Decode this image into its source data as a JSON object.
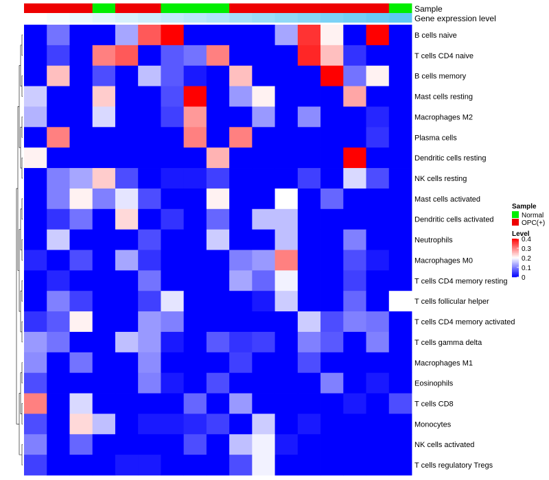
{
  "chart_data": {
    "type": "heatmap",
    "annotation_titles": [
      "Sample",
      "Gene expression level"
    ],
    "rows": [
      "B cells naive",
      "T cells CD4 naive",
      "B cells memory",
      "Mast cells resting",
      "Macrophages M2",
      "Plasma cells",
      "Dendritic cells resting",
      "NK cells resting",
      "Mast cells activated",
      "Dendritic cells activated",
      "Neutrophils",
      "Macrophages M0",
      "T cells CD4 memory resting",
      "T cells follicular helper",
      "T cells CD4 memory activated",
      "T cells gamma delta",
      "Macrophages M1",
      "Eosinophils",
      "T cells CD8",
      "Monocytes",
      "NK cells activated",
      "T cells regulatory  Tregs"
    ],
    "sample": [
      "OPC(+)",
      "OPC(+)",
      "OPC(+)",
      "Normal",
      "OPC(+)",
      "OPC(+)",
      "Normal",
      "Normal",
      "Normal",
      "OPC(+)",
      "OPC(+)",
      "OPC(+)",
      "OPC(+)",
      "OPC(+)",
      "OPC(+)",
      "OPC(+)",
      "Normal"
    ],
    "expression_level": [
      0.0,
      0.02,
      0.04,
      0.06,
      0.08,
      0.1,
      0.12,
      0.14,
      0.16,
      0.18,
      0.2,
      0.22,
      0.24,
      0.26,
      0.28,
      0.3,
      0.32
    ],
    "values": [
      [
        0,
        0.09,
        0,
        0,
        0.13,
        0.33,
        0.4,
        0,
        0,
        0,
        0,
        0.13,
        0.36,
        0.21,
        0,
        0.4,
        0
      ],
      [
        0,
        0.05,
        0,
        0.3,
        0.33,
        0,
        0.07,
        0.09,
        0.3,
        0,
        0,
        0,
        0.37,
        0.25,
        0.04,
        0,
        0
      ],
      [
        0,
        0.25,
        0,
        0.06,
        0,
        0.15,
        0.07,
        0.02,
        0,
        0.25,
        0,
        0,
        0,
        0.4,
        0.09,
        0.21,
        0
      ],
      [
        0.16,
        0,
        0,
        0.24,
        0,
        0,
        0.06,
        0.4,
        0,
        0.12,
        0.21,
        0,
        0,
        0,
        0.27,
        0,
        0
      ],
      [
        0.14,
        0,
        0,
        0.17,
        0,
        0,
        0.05,
        0.28,
        0,
        0,
        0.12,
        0,
        0.11,
        0,
        0,
        0.03,
        0
      ],
      [
        0,
        0.3,
        0,
        0,
        0,
        0,
        0,
        0.3,
        0,
        0.3,
        0,
        0,
        0,
        0,
        0,
        0.04,
        0
      ],
      [
        0.21,
        0,
        0,
        0,
        0,
        0,
        0,
        0,
        0.26,
        0,
        0,
        0,
        0,
        0,
        0.4,
        0,
        0
      ],
      [
        0,
        0.1,
        0.13,
        0.24,
        0.06,
        0,
        0.02,
        0.02,
        0.05,
        0,
        0,
        0,
        0.05,
        0,
        0.17,
        0.06,
        0
      ],
      [
        0,
        0.1,
        0.21,
        0.1,
        0.18,
        0.06,
        0,
        0,
        0.21,
        0,
        0,
        0.2,
        0,
        0.08,
        0,
        0,
        0
      ],
      [
        0,
        0.04,
        0.09,
        0,
        0.23,
        0,
        0.04,
        0,
        0.08,
        0,
        0.15,
        0.15,
        0,
        0,
        0,
        0,
        0
      ],
      [
        0,
        0.16,
        0,
        0,
        0,
        0.06,
        0,
        0,
        0.16,
        0,
        0,
        0.15,
        0,
        0,
        0.1,
        0,
        0
      ],
      [
        0.03,
        0,
        0.06,
        0,
        0.13,
        0.04,
        0,
        0,
        0,
        0.1,
        0.12,
        0.3,
        0,
        0,
        0.06,
        0.02,
        0
      ],
      [
        0,
        0.03,
        0,
        0,
        0,
        0.09,
        0,
        0,
        0,
        0.13,
        0.08,
        0.19,
        0,
        0,
        0.05,
        0,
        0
      ],
      [
        0,
        0.1,
        0.05,
        0,
        0,
        0.05,
        0.18,
        0,
        0,
        0,
        0.02,
        0.16,
        0,
        0,
        0.08,
        0,
        0.2
      ],
      [
        0.04,
        0.07,
        0.21,
        0,
        0,
        0.12,
        0.1,
        0,
        0,
        0,
        0,
        0,
        0.16,
        0.06,
        0.1,
        0.09,
        0
      ],
      [
        0.12,
        0.09,
        0,
        0,
        0.15,
        0.12,
        0.02,
        0,
        0.07,
        0.04,
        0.05,
        0,
        0.1,
        0.07,
        0,
        0.1,
        0
      ],
      [
        0.11,
        0,
        0.09,
        0,
        0,
        0.11,
        0,
        0,
        0,
        0.05,
        0,
        0,
        0.06,
        0,
        0,
        0,
        0
      ],
      [
        0.06,
        0,
        0,
        0,
        0,
        0.1,
        0.02,
        0,
        0.06,
        0,
        0,
        0,
        0,
        0.1,
        0,
        0.02,
        0
      ],
      [
        0.3,
        0,
        0.17,
        0,
        0,
        0,
        0,
        0.08,
        0,
        0.12,
        0,
        0,
        0,
        0,
        0.02,
        0,
        0.06
      ],
      [
        0.06,
        0,
        0.23,
        0.15,
        0,
        0.02,
        0.02,
        0.03,
        0.05,
        0,
        0.16,
        0,
        0.02,
        0,
        0,
        0,
        0
      ],
      [
        0.1,
        0,
        0.08,
        0,
        0,
        0,
        0,
        0.06,
        0,
        0.15,
        0.19,
        0.02,
        0,
        0,
        0,
        0,
        0
      ],
      [
        0.05,
        0,
        0,
        0,
        0.02,
        0.02,
        0,
        0,
        0,
        0.06,
        0.19,
        0,
        0,
        0,
        0,
        0,
        0
      ]
    ],
    "legend": {
      "sample_title": "Sample",
      "sample_items": [
        "Normal",
        "OPC(+)"
      ],
      "level_title": "Level",
      "level_ticks": [
        "0.4",
        "0.3",
        "0.2",
        "0.1",
        "0"
      ],
      "level_range": [
        0,
        0.4
      ]
    },
    "colors": {
      "Normal": "#00ee00",
      "OPC(+)": "#ee0000",
      "low": "#0000ff",
      "mid": "#ffffff",
      "high": "#ff0000",
      "expr_low": "#ffffff",
      "expr_high": "#5ec8f4"
    }
  }
}
